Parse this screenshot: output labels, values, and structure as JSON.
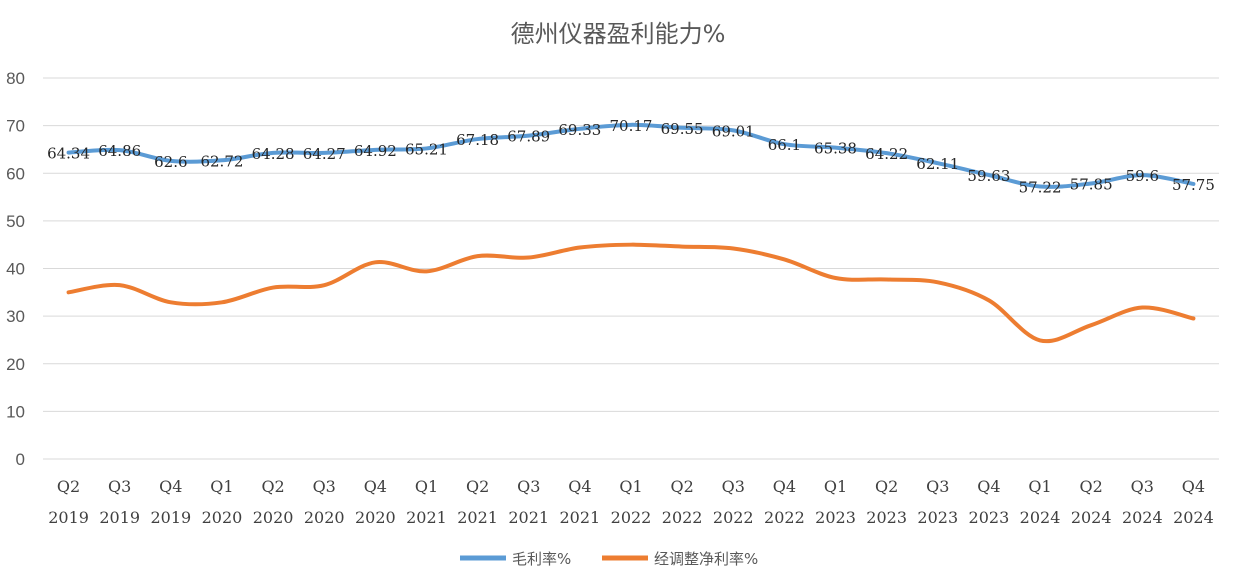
{
  "chart_data": {
    "type": "line",
    "title": "德州仪器盈利能力%",
    "categories": [
      [
        "Q2",
        "2019"
      ],
      [
        "Q3",
        "2019"
      ],
      [
        "Q4",
        "2019"
      ],
      [
        "Q1",
        "2020"
      ],
      [
        "Q2",
        "2020"
      ],
      [
        "Q3",
        "2020"
      ],
      [
        "Q4",
        "2020"
      ],
      [
        "Q1",
        "2021"
      ],
      [
        "Q2",
        "2021"
      ],
      [
        "Q3",
        "2021"
      ],
      [
        "Q4",
        "2021"
      ],
      [
        "Q1",
        "2022"
      ],
      [
        "Q2",
        "2022"
      ],
      [
        "Q3",
        "2022"
      ],
      [
        "Q4",
        "2022"
      ],
      [
        "Q1",
        "2023"
      ],
      [
        "Q2",
        "2023"
      ],
      [
        "Q3",
        "2023"
      ],
      [
        "Q4",
        "2023"
      ],
      [
        "Q1",
        "2024"
      ],
      [
        "Q2",
        "2024"
      ],
      [
        "Q3",
        "2024"
      ],
      [
        "Q4",
        "2024"
      ]
    ],
    "ylim": [
      0,
      80
    ],
    "yticks": [
      "0",
      "10",
      "20",
      "30",
      "40",
      "50",
      "60",
      "70",
      "80"
    ],
    "legend_position": "bottom",
    "series": [
      {
        "name": "毛利率%",
        "color": "#5b9bd5",
        "show_labels": true,
        "values": [
          64.34,
          64.86,
          62.6,
          62.72,
          64.28,
          64.27,
          64.92,
          65.21,
          67.18,
          67.89,
          69.33,
          70.17,
          69.55,
          69.01,
          66.1,
          65.38,
          64.22,
          62.11,
          59.63,
          57.22,
          57.85,
          59.6,
          57.75
        ],
        "labels": [
          "64.34",
          "64.86",
          "62.6",
          "62.72",
          "64.28",
          "64.27",
          "64.92",
          "65.21",
          "67.18",
          "67.89",
          "69.33",
          "70.17",
          "69.55",
          "69.01",
          "66.1",
          "65.38",
          "64.22",
          "62.11",
          "59.63",
          "57.22",
          "57.85",
          "59.6",
          "57.75"
        ]
      },
      {
        "name": "经调整净利率%",
        "color": "#ed7d31",
        "show_labels": false,
        "values": [
          35.0,
          36.5,
          32.9,
          32.9,
          36.0,
          36.5,
          41.3,
          39.4,
          42.6,
          42.3,
          44.4,
          45.0,
          44.6,
          44.2,
          41.9,
          38.0,
          37.7,
          37.1,
          33.3,
          24.9,
          28.1,
          31.8,
          29.5
        ]
      }
    ]
  }
}
